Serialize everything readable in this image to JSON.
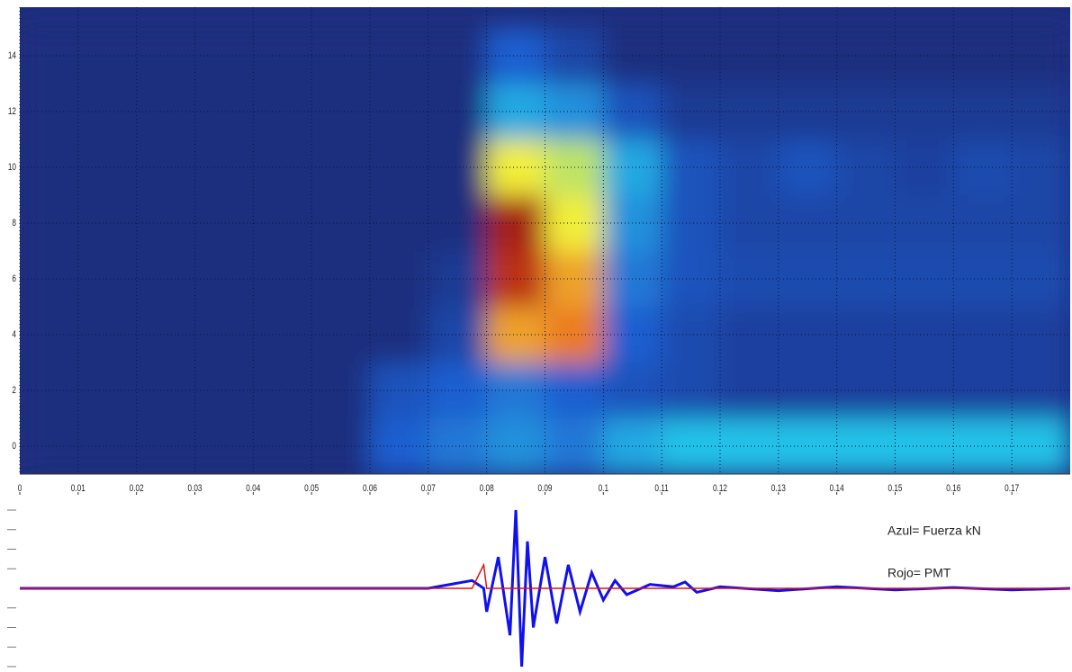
{
  "chart_data": [
    {
      "type": "heatmap",
      "xlim": [
        0,
        0.18
      ],
      "ylim": [
        -1,
        15.74
      ],
      "xticks": [
        0,
        0.01,
        0.02,
        0.03,
        0.04,
        0.05,
        0.06,
        0.07,
        0.08,
        0.09,
        0.1,
        0.11,
        0.12,
        0.13,
        0.14,
        0.15,
        0.16,
        0.17
      ],
      "yticks": [
        0,
        2,
        4,
        6,
        8,
        10,
        12,
        14
      ],
      "grid": true,
      "colormap": [
        "#1f2d7e",
        "#1f5fd0",
        "#22c2e8",
        "#f2ee3a",
        "#e8561c",
        "#8e0f12"
      ],
      "x_bins": [
        0,
        0.01,
        0.02,
        0.03,
        0.04,
        0.05,
        0.06,
        0.07,
        0.08,
        0.09,
        0.1,
        0.11,
        0.12,
        0.13,
        0.14,
        0.15,
        0.16,
        0.17,
        0.18
      ],
      "y_bins": [
        -1,
        1,
        3,
        5,
        7,
        9,
        11,
        13,
        15
      ],
      "z": [
        [
          0,
          0,
          0,
          0,
          0,
          0,
          0.2,
          0.25,
          0.3,
          0.25,
          0.35,
          0.4,
          0.4,
          0.4,
          0.4,
          0.4,
          0.4,
          0.4
        ],
        [
          0,
          0,
          0,
          0,
          0,
          0,
          0.15,
          0.2,
          0.25,
          0.2,
          0.15,
          0.12,
          0.08,
          0.08,
          0.08,
          0.08,
          0.08,
          0.08
        ],
        [
          0,
          0,
          0,
          0,
          0,
          0,
          0,
          0.1,
          0.7,
          0.75,
          0.2,
          0.12,
          0.08,
          0.08,
          0.08,
          0.08,
          0.08,
          0.08
        ],
        [
          0,
          0,
          0,
          0,
          0,
          0,
          0,
          0.05,
          0.9,
          0.7,
          0.25,
          0.15,
          0.12,
          0.12,
          0.12,
          0.12,
          0.12,
          0.12
        ],
        [
          0,
          0,
          0,
          0,
          0,
          0,
          0,
          0,
          0.95,
          0.6,
          0.3,
          0.15,
          0.1,
          0.1,
          0.1,
          0.1,
          0.1,
          0.1
        ],
        [
          0,
          0,
          0,
          0,
          0,
          0,
          0,
          0,
          0.6,
          0.55,
          0.35,
          0.15,
          0.1,
          0.15,
          0.1,
          0.08,
          0.12,
          0.1
        ],
        [
          0,
          0,
          0,
          0,
          0,
          0,
          0,
          0,
          0.35,
          0.3,
          0.15,
          0.05,
          0.05,
          0.05,
          0.05,
          0.05,
          0.05,
          0.05
        ],
        [
          0,
          0,
          0,
          0,
          0,
          0,
          0,
          0,
          0.2,
          0.1,
          0,
          0,
          0,
          0,
          0,
          0,
          0,
          0
        ]
      ]
    },
    {
      "type": "line",
      "xlim": [
        0,
        0.18
      ],
      "ylim": [
        -1,
        1
      ],
      "yticks": [
        -1,
        -0.75,
        -0.5,
        -0.25,
        0.25,
        0.5,
        0.75,
        1
      ],
      "x": [
        0,
        0.07,
        0.0775,
        0.0795,
        0.08,
        0.082,
        0.084,
        0.085,
        0.086,
        0.087,
        0.088,
        0.09,
        0.092,
        0.094,
        0.096,
        0.098,
        0.1,
        0.102,
        0.104,
        0.108,
        0.112,
        0.114,
        0.116,
        0.12,
        0.13,
        0.14,
        0.15,
        0.16,
        0.17,
        0.18
      ],
      "series": [
        {
          "name": "Azul= Fuerza kN",
          "color": "#1010f0",
          "values": [
            0,
            0,
            0.1,
            0,
            -0.3,
            0.4,
            -0.6,
            1.0,
            -1.0,
            0.6,
            -0.5,
            0.4,
            -0.45,
            0.3,
            -0.3,
            0.2,
            -0.15,
            0.1,
            -0.08,
            0.05,
            0.02,
            0.08,
            -0.05,
            0.02,
            -0.03,
            0.02,
            -0.02,
            0.01,
            -0.02,
            0
          ]
        },
        {
          "name": "Rojo= PMT",
          "color": "#e01010",
          "values": [
            0,
            0,
            0,
            0.3,
            0,
            0,
            0,
            0,
            0,
            0,
            0,
            0,
            0,
            0,
            0,
            0,
            0,
            0,
            0,
            0,
            0,
            0,
            0,
            0,
            0,
            0,
            0,
            0,
            0,
            0
          ]
        }
      ]
    }
  ]
}
